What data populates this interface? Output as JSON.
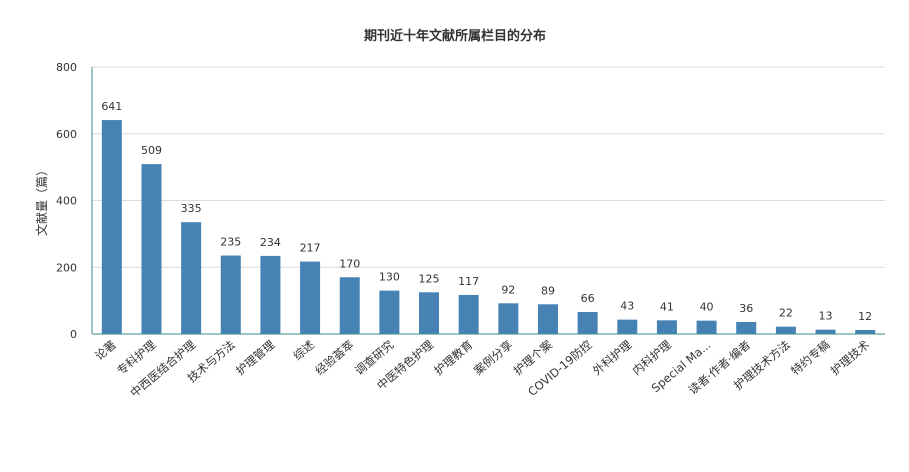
{
  "chart_data": {
    "type": "bar",
    "title": "期刊近十年文献所属栏目的分布",
    "xlabel": "",
    "ylabel": "文献量（篇）",
    "ylim": [
      0,
      800
    ],
    "yticks": [
      0,
      200,
      400,
      600,
      800
    ],
    "grid": true,
    "bar_color": "#4682b4",
    "categories": [
      "论著",
      "专科护理",
      "中西医结合护理",
      "技术与方法",
      "护理管理",
      "综述",
      "经验荟萃",
      "调查研究",
      "中医特色护理",
      "护理教育",
      "案例分享",
      "护理个案",
      "COVID-19防控",
      "外科护理",
      "内科护理",
      "Special Ma...",
      "读者·作者·编者",
      "护理技术方法",
      "特约专稿",
      "护理技术"
    ],
    "values": [
      641,
      509,
      335,
      235,
      234,
      217,
      170,
      130,
      125,
      117,
      92,
      89,
      66,
      43,
      41,
      40,
      36,
      22,
      13,
      12
    ]
  }
}
